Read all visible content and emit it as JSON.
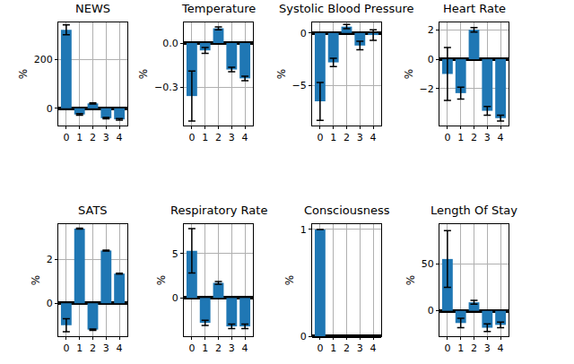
{
  "chart_data": [
    {
      "type": "bar",
      "title": "NEWS",
      "y_label": "%",
      "color": "#1f77b4",
      "grid": true,
      "x": [
        0,
        1,
        2,
        3,
        4
      ],
      "xlim": [
        -0.6,
        4.6
      ],
      "xticks": [
        0,
        1,
        2,
        3,
        4
      ],
      "values": [
        320,
        -25,
        20,
        -40,
        -45
      ],
      "errors": [
        20,
        3,
        2,
        3,
        3
      ],
      "ylim": [
        -70,
        350
      ],
      "yticks": [
        0,
        200
      ]
    },
    {
      "type": "bar",
      "title": "Temperature",
      "y_label": "%",
      "color": "#1f77b4",
      "grid": true,
      "x": [
        0,
        1,
        2,
        3,
        4
      ],
      "xlim": [
        -0.6,
        4.6
      ],
      "xticks": [
        0,
        1,
        2,
        3,
        4
      ],
      "values": [
        -0.36,
        -0.05,
        0.1,
        -0.18,
        -0.24
      ],
      "errors": [
        0.17,
        0.02,
        0.01,
        0.015,
        0.015
      ],
      "ylim": [
        -0.56,
        0.14
      ],
      "yticks": [
        {
          "value": -0.3,
          "label": "−0.3"
        },
        {
          "value": 0,
          "label": "0.0"
        }
      ]
    },
    {
      "type": "bar",
      "title": "Systolic Blood Pressure",
      "y_label": "%",
      "color": "#1f77b4",
      "grid": true,
      "x": [
        0,
        1,
        2,
        3,
        4
      ],
      "xlim": [
        -0.6,
        4.6
      ],
      "xticks": [
        0,
        1,
        2,
        3,
        4
      ],
      "values": [
        -6.5,
        -2.8,
        0.6,
        -1.2,
        -0.2
      ],
      "errors": [
        1.8,
        0.4,
        0.2,
        0.4,
        0.5
      ],
      "ylim": [
        -8.8,
        1.0
      ],
      "yticks": [
        {
          "value": -5,
          "label": "−5"
        },
        0
      ]
    },
    {
      "type": "bar",
      "title": "Heart Rate",
      "y_label": "%",
      "color": "#1f77b4",
      "grid": true,
      "x": [
        0,
        1,
        2,
        3,
        4
      ],
      "xlim": [
        -0.6,
        4.6
      ],
      "xticks": [
        0,
        1,
        2,
        3,
        4
      ],
      "values": [
        -1.0,
        -2.3,
        2.0,
        -3.5,
        -4.0
      ],
      "errors": [
        1.8,
        0.4,
        0.15,
        0.3,
        0.2
      ],
      "ylim": [
        -4.5,
        2.5
      ],
      "yticks": [
        {
          "value": -2,
          "label": "−2"
        },
        0,
        2
      ]
    },
    {
      "type": "bar",
      "title": "SATS",
      "y_label": "%",
      "color": "#1f77b4",
      "grid": true,
      "x": [
        0,
        1,
        2,
        3,
        4
      ],
      "xlim": [
        -0.6,
        4.6
      ],
      "xticks": [
        0,
        1,
        2,
        3,
        4
      ],
      "values": [
        -1.0,
        3.4,
        -1.2,
        2.4,
        1.35
      ],
      "errors": [
        0.3,
        0.02,
        0.03,
        0.02,
        0.02
      ],
      "ylim": [
        -1.5,
        3.6
      ],
      "yticks": [
        0,
        2
      ]
    },
    {
      "type": "bar",
      "title": "Respiratory Rate",
      "y_label": "%",
      "color": "#1f77b4",
      "grid": true,
      "x": [
        0,
        1,
        2,
        3,
        4
      ],
      "xlim": [
        -0.6,
        4.6
      ],
      "xticks": [
        0,
        1,
        2,
        3,
        4
      ],
      "values": [
        5.3,
        -2.8,
        1.7,
        -3.2,
        -3.2
      ],
      "errors": [
        2.5,
        0.3,
        0.15,
        0.25,
        0.25
      ],
      "ylim": [
        -4.3,
        8.3
      ],
      "yticks": [
        0,
        5
      ]
    },
    {
      "type": "bar",
      "title": "Consciousness",
      "y_label": "%",
      "color": "#1f77b4",
      "grid": true,
      "x": [
        0,
        1,
        2,
        3,
        4
      ],
      "xlim": [
        -0.6,
        4.6
      ],
      "xticks": [
        0,
        1,
        2,
        3,
        4
      ],
      "values": [
        1.0,
        0,
        0,
        0,
        0
      ],
      "errors": [
        0,
        0,
        0,
        0,
        0
      ],
      "ylim": [
        0,
        1.05
      ],
      "yticks": [
        0,
        1
      ]
    },
    {
      "type": "bar",
      "title": "Length Of Stay",
      "y_label": "%",
      "color": "#1f77b4",
      "grid": true,
      "x": [
        0,
        1,
        2,
        3,
        4
      ],
      "xlim": [
        -0.6,
        4.6
      ],
      "xticks": [
        0,
        1,
        2,
        3,
        4
      ],
      "values": [
        55,
        -13,
        9,
        -18,
        -15
      ],
      "errors": [
        30,
        5,
        2,
        4,
        3
      ],
      "ylim": [
        -27,
        92
      ],
      "yticks": [
        0,
        50
      ]
    }
  ]
}
